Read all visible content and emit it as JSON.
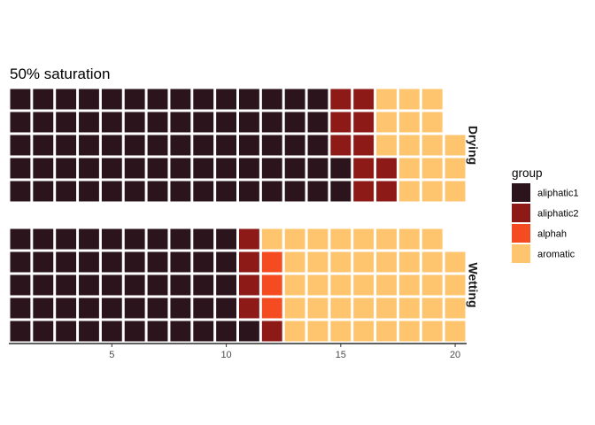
{
  "chart_data": {
    "type": "waffle",
    "title": "50% saturation",
    "x_ticks": [
      5,
      10,
      15,
      20
    ],
    "xlim": [
      1,
      20
    ],
    "rows_per_panel": 5,
    "legend": {
      "title": "group",
      "position": "right",
      "entries": [
        {
          "name": "aliphatic1",
          "color": "#2B141B"
        },
        {
          "name": "aliphatic2",
          "color": "#8E1A17"
        },
        {
          "name": "alphah",
          "color": "#F44B21"
        },
        {
          "name": "aromatic",
          "color": "#FFC46E"
        }
      ]
    },
    "panels": [
      {
        "name": "Drying",
        "columns": [
          [
            "aliphatic1",
            "aliphatic1",
            "aliphatic1",
            "aliphatic1",
            "aliphatic1"
          ],
          [
            "aliphatic1",
            "aliphatic1",
            "aliphatic1",
            "aliphatic1",
            "aliphatic1"
          ],
          [
            "aliphatic1",
            "aliphatic1",
            "aliphatic1",
            "aliphatic1",
            "aliphatic1"
          ],
          [
            "aliphatic1",
            "aliphatic1",
            "aliphatic1",
            "aliphatic1",
            "aliphatic1"
          ],
          [
            "aliphatic1",
            "aliphatic1",
            "aliphatic1",
            "aliphatic1",
            "aliphatic1"
          ],
          [
            "aliphatic1",
            "aliphatic1",
            "aliphatic1",
            "aliphatic1",
            "aliphatic1"
          ],
          [
            "aliphatic1",
            "aliphatic1",
            "aliphatic1",
            "aliphatic1",
            "aliphatic1"
          ],
          [
            "aliphatic1",
            "aliphatic1",
            "aliphatic1",
            "aliphatic1",
            "aliphatic1"
          ],
          [
            "aliphatic1",
            "aliphatic1",
            "aliphatic1",
            "aliphatic1",
            "aliphatic1"
          ],
          [
            "aliphatic1",
            "aliphatic1",
            "aliphatic1",
            "aliphatic1",
            "aliphatic1"
          ],
          [
            "aliphatic1",
            "aliphatic1",
            "aliphatic1",
            "aliphatic1",
            "aliphatic1"
          ],
          [
            "aliphatic1",
            "aliphatic1",
            "aliphatic1",
            "aliphatic1",
            "aliphatic1"
          ],
          [
            "aliphatic1",
            "aliphatic1",
            "aliphatic1",
            "aliphatic1",
            "aliphatic1"
          ],
          [
            "aliphatic1",
            "aliphatic1",
            "aliphatic1",
            "aliphatic1",
            "aliphatic1"
          ],
          [
            "aliphatic1",
            "aliphatic1",
            "aliphatic2",
            "aliphatic2",
            "aliphatic2"
          ],
          [
            "aliphatic2",
            "aliphatic2",
            "aliphatic2",
            "aliphatic2",
            "aliphatic2"
          ],
          [
            "aliphatic2",
            "aliphatic2",
            "aromatic",
            "aromatic",
            "aromatic"
          ],
          [
            "aromatic",
            "aromatic",
            "aromatic",
            "aromatic",
            "aromatic"
          ],
          [
            "aromatic",
            "aromatic",
            "aromatic",
            "aromatic",
            "aromatic"
          ],
          [
            "aromatic",
            "aromatic",
            "aromatic"
          ]
        ]
      },
      {
        "name": "Wetting",
        "columns": [
          [
            "aliphatic1",
            "aliphatic1",
            "aliphatic1",
            "aliphatic1",
            "aliphatic1"
          ],
          [
            "aliphatic1",
            "aliphatic1",
            "aliphatic1",
            "aliphatic1",
            "aliphatic1"
          ],
          [
            "aliphatic1",
            "aliphatic1",
            "aliphatic1",
            "aliphatic1",
            "aliphatic1"
          ],
          [
            "aliphatic1",
            "aliphatic1",
            "aliphatic1",
            "aliphatic1",
            "aliphatic1"
          ],
          [
            "aliphatic1",
            "aliphatic1",
            "aliphatic1",
            "aliphatic1",
            "aliphatic1"
          ],
          [
            "aliphatic1",
            "aliphatic1",
            "aliphatic1",
            "aliphatic1",
            "aliphatic1"
          ],
          [
            "aliphatic1",
            "aliphatic1",
            "aliphatic1",
            "aliphatic1",
            "aliphatic1"
          ],
          [
            "aliphatic1",
            "aliphatic1",
            "aliphatic1",
            "aliphatic1",
            "aliphatic1"
          ],
          [
            "aliphatic1",
            "aliphatic1",
            "aliphatic1",
            "aliphatic1",
            "aliphatic1"
          ],
          [
            "aliphatic1",
            "aliphatic1",
            "aliphatic1",
            "aliphatic1",
            "aliphatic1"
          ],
          [
            "aliphatic1",
            "aliphatic2",
            "aliphatic2",
            "aliphatic2",
            "aliphatic2"
          ],
          [
            "aliphatic2",
            "alphah",
            "alphah",
            "alphah",
            "aromatic"
          ],
          [
            "aromatic",
            "aromatic",
            "aromatic",
            "aromatic",
            "aromatic"
          ],
          [
            "aromatic",
            "aromatic",
            "aromatic",
            "aromatic",
            "aromatic"
          ],
          [
            "aromatic",
            "aromatic",
            "aromatic",
            "aromatic",
            "aromatic"
          ],
          [
            "aromatic",
            "aromatic",
            "aromatic",
            "aromatic",
            "aromatic"
          ],
          [
            "aromatic",
            "aromatic",
            "aromatic",
            "aromatic",
            "aromatic"
          ],
          [
            "aromatic",
            "aromatic",
            "aromatic",
            "aromatic",
            "aromatic"
          ],
          [
            "aromatic",
            "aromatic",
            "aromatic",
            "aromatic",
            "aromatic"
          ],
          [
            "aromatic",
            "aromatic",
            "aromatic",
            "aromatic"
          ]
        ]
      }
    ]
  }
}
